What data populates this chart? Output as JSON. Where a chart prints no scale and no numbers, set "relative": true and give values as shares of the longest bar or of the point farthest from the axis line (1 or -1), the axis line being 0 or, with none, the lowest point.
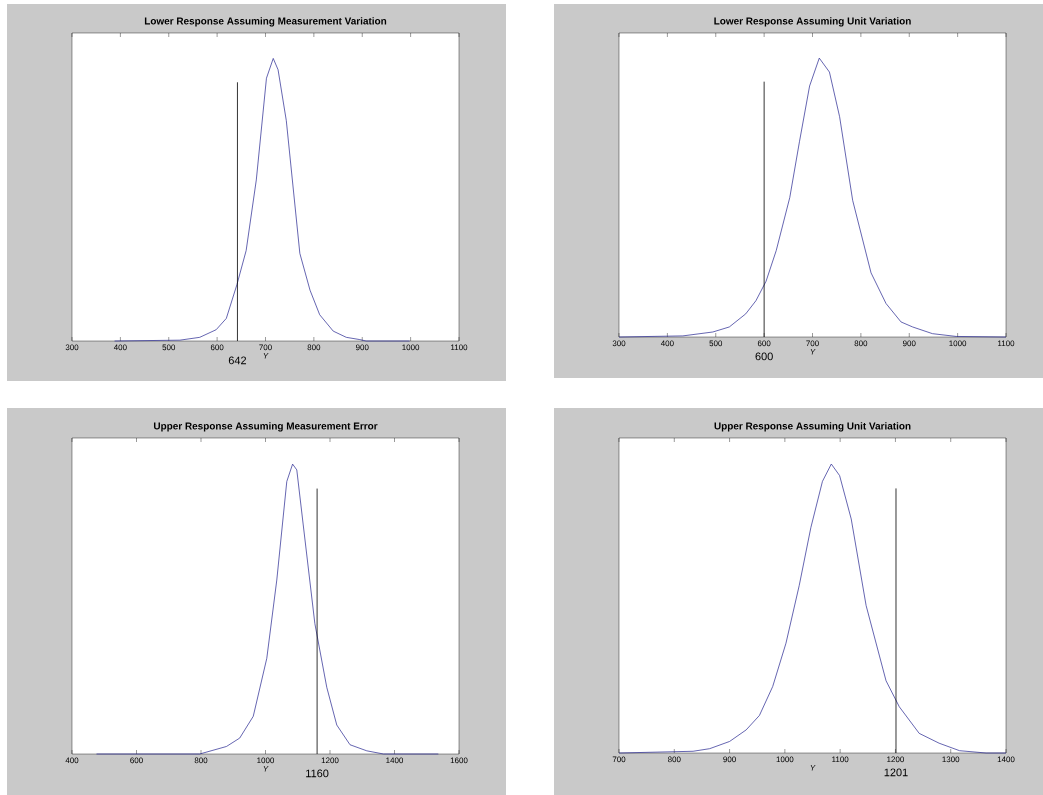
{
  "chart_data": [
    {
      "type": "line",
      "title": "Lower Response Assuming Measurement Variation",
      "xlabel": "Y",
      "color": "#24248f",
      "relative": true,
      "xlim": [
        300,
        1100
      ],
      "xticks": [
        300,
        400,
        500,
        600,
        700,
        800,
        900,
        1000,
        1100
      ],
      "x": [
        388,
        523,
        564,
        598,
        619,
        641,
        660,
        681,
        702,
        716,
        726,
        743,
        771,
        792,
        812,
        840,
        867,
        895,
        908,
        998
      ],
      "values": [
        0,
        0.003,
        0.013,
        0.04,
        0.08,
        0.2,
        0.32,
        0.57,
        0.93,
        1.0,
        0.96,
        0.78,
        0.31,
        0.18,
        0.093,
        0.035,
        0.013,
        0.005,
        0,
        0
      ],
      "ref_lines": [
        {
          "axis": "x",
          "value": 642,
          "label": "642",
          "color": "#000000"
        }
      ]
    },
    {
      "type": "line",
      "title": "Lower Response Assuming Unit Variation",
      "xlabel": "Y",
      "color": "#24248f",
      "relative": true,
      "xlim": [
        300,
        1100
      ],
      "xticks": [
        300,
        400,
        500,
        600,
        700,
        800,
        900,
        1000,
        1100
      ],
      "x": [
        300,
        432,
        494,
        528,
        562,
        583,
        604,
        625,
        653,
        673,
        694,
        714,
        735,
        756,
        783,
        821,
        852,
        883,
        907,
        948,
        997,
        1100
      ],
      "values": [
        0,
        0.004,
        0.018,
        0.036,
        0.083,
        0.13,
        0.2,
        0.31,
        0.5,
        0.7,
        0.9,
        1.0,
        0.95,
        0.79,
        0.49,
        0.23,
        0.12,
        0.054,
        0.036,
        0.012,
        0.002,
        0
      ],
      "ref_lines": [
        {
          "axis": "x",
          "value": 600,
          "label": "600",
          "color": "#000000"
        }
      ]
    },
    {
      "type": "line",
      "title": "Upper Response Assuming Measurement Error",
      "xlabel": "Y",
      "color": "#24248f",
      "relative": true,
      "xlim": [
        400,
        1600
      ],
      "xticks": [
        400,
        600,
        800,
        1000,
        1200,
        1400,
        1600
      ],
      "x": [
        476,
        796,
        879,
        920,
        962,
        1004,
        1035,
        1066,
        1084,
        1097,
        1117,
        1153,
        1190,
        1221,
        1262,
        1314,
        1366,
        1536
      ],
      "values": [
        0,
        0,
        0.026,
        0.055,
        0.13,
        0.33,
        0.6,
        0.94,
        1.0,
        0.98,
        0.79,
        0.45,
        0.23,
        0.1,
        0.032,
        0.011,
        0,
        0
      ],
      "ref_lines": [
        {
          "axis": "x",
          "value": 1160,
          "label": "1160",
          "color": "#000000"
        }
      ]
    },
    {
      "type": "line",
      "title": "Upper Response Assuming Unit Variation",
      "xlabel": "Y",
      "color": "#24248f",
      "relative": true,
      "xlim": [
        700,
        1400
      ],
      "xticks": [
        700,
        800,
        900,
        1000,
        1100,
        1200,
        1300,
        1400
      ],
      "x": [
        700,
        834,
        864,
        900,
        930,
        954,
        978,
        1002,
        1026,
        1047,
        1068,
        1084,
        1099,
        1120,
        1147,
        1183,
        1207,
        1243,
        1279,
        1316,
        1364,
        1400
      ],
      "values": [
        0,
        0.006,
        0.015,
        0.04,
        0.08,
        0.13,
        0.23,
        0.38,
        0.58,
        0.78,
        0.94,
        1.0,
        0.96,
        0.81,
        0.51,
        0.25,
        0.16,
        0.068,
        0.034,
        0.008,
        0,
        0
      ],
      "ref_lines": [
        {
          "axis": "x",
          "value": 1201,
          "label": "1201",
          "color": "#000000"
        }
      ]
    }
  ]
}
